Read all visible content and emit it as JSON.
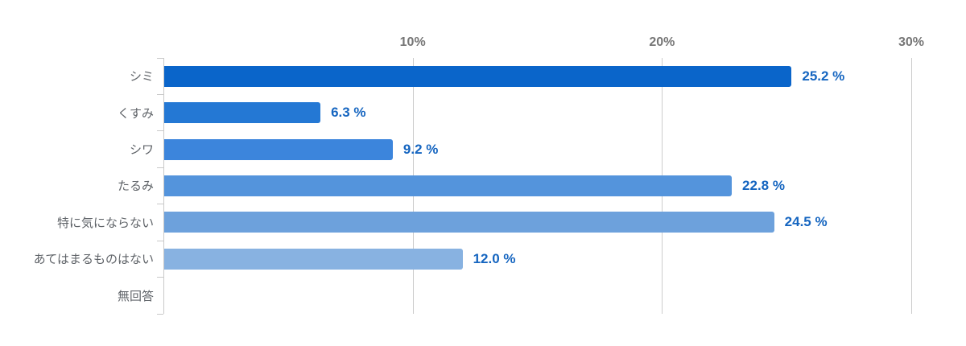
{
  "chart_data": {
    "type": "bar",
    "orientation": "horizontal",
    "title": "",
    "xlabel": "",
    "ylabel": "",
    "xlim": [
      0,
      30
    ],
    "grid": "vertical gridlines at x ticks, legend none",
    "categories": [
      "シミ",
      "くすみ",
      "シワ",
      "たるみ",
      "特に気にならない",
      "あてはまるものはない",
      "無回答"
    ],
    "values": [
      25.2,
      6.3,
      9.2,
      22.8,
      24.5,
      12.0,
      0
    ],
    "value_labels": [
      "25.2 %",
      "6.3 %",
      "9.2 %",
      "22.8 %",
      "24.5 %",
      "12.0 %",
      ""
    ],
    "bar_colors": [
      "#0a65ca",
      "#2478d4",
      "#3c85dc",
      "#5494dc",
      "#6da1dc",
      "#88b2e1",
      "#88b2e1"
    ],
    "x_ticks": [
      {
        "value": 10,
        "label": "10%"
      },
      {
        "value": 20,
        "label": "20%"
      },
      {
        "value": 30,
        "label": "30%"
      }
    ]
  },
  "colors": {
    "value_label": "#1565c0",
    "axis": "#c9c9c9",
    "gridline": "#cccccc",
    "tick_label": "#757575",
    "category_label": "#5f6368",
    "background": "#ffffff"
  }
}
